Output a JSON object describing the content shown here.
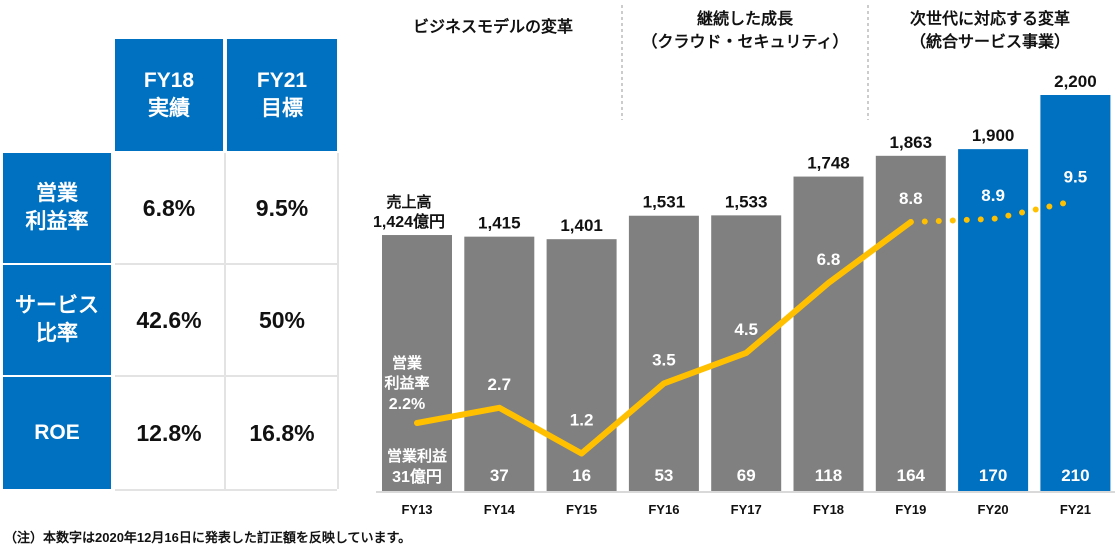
{
  "table": {
    "columns": [
      {
        "line1": "FY18",
        "line2": "実績"
      },
      {
        "line1": "FY21",
        "line2": "目標"
      }
    ],
    "rows": [
      {
        "label_line1": "営業",
        "label_line2": "利益率",
        "fy18": "6.8%",
        "fy21": "9.5%"
      },
      {
        "label_line1": "サービス",
        "label_line2": "比率",
        "fy18": "42.6%",
        "fy21": "50%"
      },
      {
        "label_line1": "ROE",
        "label_line2": "",
        "fy18": "12.8%",
        "fy21": "16.8%"
      }
    ]
  },
  "phases": [
    {
      "line1": "ビジネスモデルの変革",
      "line2": ""
    },
    {
      "line1": "継続した成長",
      "line2": "（クラウド・セキュリティ）"
    },
    {
      "line1": "次世代に対応する変革",
      "line2": "（統合サービス事業）"
    }
  ],
  "footnote": "（注）本数字は2020年12月16日に発表した訂正額を反映しています。",
  "colors": {
    "actual": "#808080",
    "target": "#0070c0",
    "margin_line": "#ffc000"
  },
  "chart_data": {
    "type": "bar",
    "categories": [
      "FY13",
      "FY14",
      "FY15",
      "FY16",
      "FY17",
      "FY18",
      "FY19",
      "FY20",
      "FY21"
    ],
    "series": [
      {
        "name": "売上高",
        "values": [
          1424,
          1415,
          1401,
          1531,
          1533,
          1748,
          1863,
          1900,
          2200
        ],
        "labels": [
          "1,424億円",
          "1,415",
          "1,401",
          "1,531",
          "1,533",
          "1,748",
          "1,863",
          "1,900",
          "2,200"
        ]
      },
      {
        "name": "営業利益",
        "values": [
          31,
          37,
          16,
          53,
          69,
          118,
          164,
          170,
          210
        ],
        "labels": [
          "31億円",
          "37",
          "16",
          "53",
          "69",
          "118",
          "164",
          "170",
          "210"
        ]
      },
      {
        "name": "営業利益率",
        "values": [
          2.2,
          2.7,
          1.2,
          3.5,
          4.5,
          6.8,
          8.8,
          8.9,
          9.5
        ],
        "labels": [
          "2.2%",
          "2.7",
          "1.2",
          "3.5",
          "4.5",
          "6.8",
          "8.8",
          "8.9",
          "9.5"
        ]
      }
    ],
    "target_from": "FY20",
    "sales_title": "売上高",
    "profit_title": "営業利益",
    "margin_title_line1": "営業",
    "margin_title_line2": "利益率"
  }
}
